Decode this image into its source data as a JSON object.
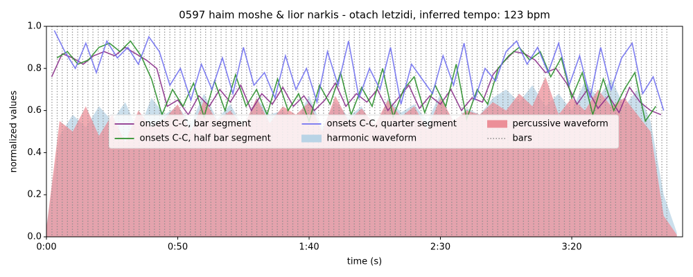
{
  "chart_data": {
    "type": "line",
    "title": "0597 haim moshe & lior narkis - otach letzidi, inferred tempo: 123 bpm",
    "xlabel": "time (s)",
    "ylabel": "normalized values",
    "xlim": [
      0,
      242.2
    ],
    "ylim": [
      0,
      1
    ],
    "xticks": [
      {
        "value": 0,
        "label": "0:00"
      },
      {
        "value": 50,
        "label": "0:50"
      },
      {
        "value": 100,
        "label": "1:40"
      },
      {
        "value": 150,
        "label": "2:30"
      },
      {
        "value": 200,
        "label": "3:20"
      }
    ],
    "yticks": [
      {
        "value": 0,
        "label": "0.0"
      },
      0.2,
      0.4,
      0.6,
      0.8,
      {
        "value": 1,
        "label": "1.0"
      }
    ],
    "legend": "center",
    "series": [
      {
        "name": "onsets C-C, bar segment",
        "style": "line",
        "color": "#8a2f8a",
        "x": [
          2,
          6,
          10,
          14,
          18,
          22,
          26,
          30,
          34,
          38,
          42,
          46,
          50,
          54,
          58,
          62,
          66,
          70,
          74,
          78,
          82,
          86,
          90,
          94,
          98,
          102,
          106,
          110,
          114,
          118,
          122,
          126,
          130,
          134,
          138,
          142,
          146,
          150,
          154,
          158,
          162,
          166,
          170,
          174,
          178,
          182,
          186,
          190,
          194,
          198,
          202,
          206,
          210,
          214,
          218,
          222,
          226,
          230,
          234
        ],
        "values": [
          0.76,
          0.87,
          0.85,
          0.82,
          0.86,
          0.88,
          0.86,
          0.9,
          0.87,
          0.84,
          0.8,
          0.62,
          0.65,
          0.58,
          0.67,
          0.62,
          0.7,
          0.64,
          0.72,
          0.6,
          0.68,
          0.63,
          0.71,
          0.62,
          0.67,
          0.6,
          0.65,
          0.73,
          0.62,
          0.68,
          0.64,
          0.7,
          0.6,
          0.66,
          0.72,
          0.61,
          0.67,
          0.63,
          0.7,
          0.6,
          0.66,
          0.64,
          0.77,
          0.83,
          0.88,
          0.87,
          0.84,
          0.78,
          0.8,
          0.73,
          0.63,
          0.7,
          0.61,
          0.67,
          0.59,
          0.71,
          0.64,
          0.6,
          0.58
        ]
      },
      {
        "name": "onsets C-C, half bar segment",
        "style": "line",
        "color": "#2a8f2a",
        "x": [
          4,
          8,
          12,
          16,
          20,
          24,
          28,
          32,
          36,
          40,
          44,
          48,
          52,
          56,
          60,
          64,
          68,
          72,
          76,
          80,
          84,
          88,
          92,
          96,
          100,
          104,
          108,
          112,
          116,
          120,
          124,
          128,
          132,
          136,
          140,
          144,
          148,
          152,
          156,
          160,
          164,
          168,
          172,
          176,
          180,
          184,
          188,
          192,
          196,
          200,
          204,
          208,
          212,
          216,
          220,
          224,
          228,
          232
        ],
        "values": [
          0.85,
          0.88,
          0.82,
          0.84,
          0.9,
          0.92,
          0.88,
          0.93,
          0.86,
          0.75,
          0.58,
          0.7,
          0.62,
          0.73,
          0.57,
          0.74,
          0.6,
          0.77,
          0.62,
          0.7,
          0.58,
          0.75,
          0.6,
          0.68,
          0.55,
          0.72,
          0.63,
          0.78,
          0.58,
          0.71,
          0.62,
          0.8,
          0.57,
          0.7,
          0.76,
          0.59,
          0.72,
          0.62,
          0.82,
          0.56,
          0.7,
          0.63,
          0.8,
          0.86,
          0.9,
          0.84,
          0.88,
          0.76,
          0.85,
          0.66,
          0.78,
          0.58,
          0.75,
          0.6,
          0.7,
          0.78,
          0.55,
          0.62
        ]
      },
      {
        "name": "onsets C-C, quarter segment",
        "style": "line",
        "color": "#7070f0",
        "x": [
          3,
          7,
          11,
          15,
          19,
          23,
          27,
          31,
          35,
          39,
          43,
          47,
          51,
          55,
          59,
          63,
          67,
          71,
          75,
          79,
          83,
          87,
          91,
          95,
          99,
          103,
          107,
          111,
          115,
          119,
          123,
          127,
          131,
          135,
          139,
          143,
          147,
          151,
          155,
          159,
          163,
          167,
          171,
          175,
          179,
          183,
          187,
          191,
          195,
          199,
          203,
          207,
          211,
          215,
          219,
          223,
          227,
          231,
          235
        ],
        "values": [
          0.98,
          0.88,
          0.8,
          0.92,
          0.78,
          0.93,
          0.85,
          0.9,
          0.82,
          0.95,
          0.88,
          0.72,
          0.8,
          0.65,
          0.82,
          0.7,
          0.85,
          0.68,
          0.9,
          0.72,
          0.78,
          0.66,
          0.86,
          0.7,
          0.8,
          0.64,
          0.88,
          0.72,
          0.93,
          0.66,
          0.8,
          0.7,
          0.9,
          0.63,
          0.82,
          0.75,
          0.68,
          0.86,
          0.72,
          0.92,
          0.65,
          0.8,
          0.74,
          0.88,
          0.93,
          0.82,
          0.9,
          0.78,
          0.92,
          0.72,
          0.86,
          0.66,
          0.9,
          0.7,
          0.85,
          0.92,
          0.68,
          0.76,
          0.6
        ]
      },
      {
        "name": "harmonic waveform",
        "style": "area",
        "color": "#b9d4e6",
        "x": [
          0,
          5,
          10,
          15,
          20,
          25,
          30,
          35,
          40,
          45,
          50,
          55,
          60,
          65,
          70,
          75,
          80,
          85,
          90,
          95,
          100,
          105,
          110,
          115,
          120,
          125,
          130,
          135,
          140,
          145,
          150,
          155,
          160,
          165,
          170,
          175,
          180,
          185,
          190,
          195,
          200,
          205,
          210,
          215,
          220,
          225,
          230,
          235,
          240
        ],
        "values": [
          0.05,
          0.48,
          0.58,
          0.52,
          0.62,
          0.55,
          0.64,
          0.5,
          0.66,
          0.58,
          0.62,
          0.54,
          0.68,
          0.56,
          0.63,
          0.52,
          0.66,
          0.58,
          0.6,
          0.55,
          0.67,
          0.52,
          0.64,
          0.57,
          0.62,
          0.5,
          0.66,
          0.59,
          0.63,
          0.55,
          0.68,
          0.53,
          0.61,
          0.58,
          0.66,
          0.7,
          0.64,
          0.72,
          0.62,
          0.68,
          0.6,
          0.74,
          0.66,
          0.75,
          0.62,
          0.7,
          0.55,
          0.2,
          0.02
        ]
      },
      {
        "name": "percussive waveform",
        "style": "area",
        "color": "#ec8f98",
        "x": [
          0,
          5,
          10,
          15,
          20,
          25,
          30,
          35,
          40,
          45,
          50,
          55,
          60,
          65,
          70,
          75,
          80,
          85,
          90,
          95,
          100,
          105,
          110,
          115,
          120,
          125,
          130,
          135,
          140,
          145,
          150,
          155,
          160,
          165,
          170,
          175,
          180,
          185,
          190,
          195,
          200,
          205,
          210,
          215,
          220,
          225,
          230,
          235,
          240
        ],
        "values": [
          0.04,
          0.55,
          0.5,
          0.62,
          0.48,
          0.58,
          0.45,
          0.6,
          0.52,
          0.56,
          0.63,
          0.5,
          0.65,
          0.55,
          0.6,
          0.52,
          0.66,
          0.54,
          0.62,
          0.58,
          0.64,
          0.5,
          0.67,
          0.55,
          0.61,
          0.53,
          0.65,
          0.57,
          0.62,
          0.51,
          0.66,
          0.55,
          0.6,
          0.58,
          0.64,
          0.6,
          0.68,
          0.62,
          0.76,
          0.58,
          0.66,
          0.6,
          0.7,
          0.62,
          0.66,
          0.58,
          0.5,
          0.1,
          0.01
        ]
      },
      {
        "name": "bars",
        "style": "vlines",
        "color": "#888888",
        "x": [
          2.1,
          4.1,
          6.0,
          8.0,
          9.9,
          11.9,
          13.8,
          15.8,
          17.7,
          19.7,
          21.6,
          23.6,
          25.5,
          27.5,
          29.4,
          31.4,
          33.3,
          35.3,
          37.2,
          39.2,
          41.1,
          43.1,
          45.0,
          47.0,
          48.9,
          50.9,
          52.8,
          54.8,
          56.7,
          58.7,
          60.6,
          62.6,
          64.5,
          66.5,
          68.4,
          70.4,
          72.3,
          74.3,
          76.2,
          78.2,
          80.1,
          82.1,
          84.0,
          86.0,
          87.9,
          89.9,
          91.8,
          93.8,
          95.7,
          97.7,
          99.7,
          101.6,
          103.6,
          105.5,
          107.5,
          109.4,
          111.4,
          113.3,
          115.3,
          117.2,
          119.2,
          121.1,
          123.1,
          125.0,
          127.0,
          128.9,
          130.9,
          132.8,
          134.8,
          136.7,
          138.7,
          140.6,
          142.6,
          144.5,
          146.5,
          148.4,
          150.4,
          152.3,
          154.3,
          156.2,
          158.2,
          160.1,
          162.1,
          164.0,
          166.0,
          167.9,
          169.9,
          171.8,
          173.8,
          175.7,
          177.7,
          179.6,
          181.6,
          183.5,
          185.5,
          187.4,
          189.4,
          191.3,
          193.3,
          195.2,
          197.2,
          199.2,
          201.1,
          203.1,
          205.0,
          207.0,
          208.9,
          210.9,
          212.8,
          214.8,
          216.7,
          218.7,
          220.6,
          222.6,
          224.5,
          226.5,
          228.4,
          230.4,
          232.3,
          234.3,
          236.2
        ]
      }
    ]
  }
}
